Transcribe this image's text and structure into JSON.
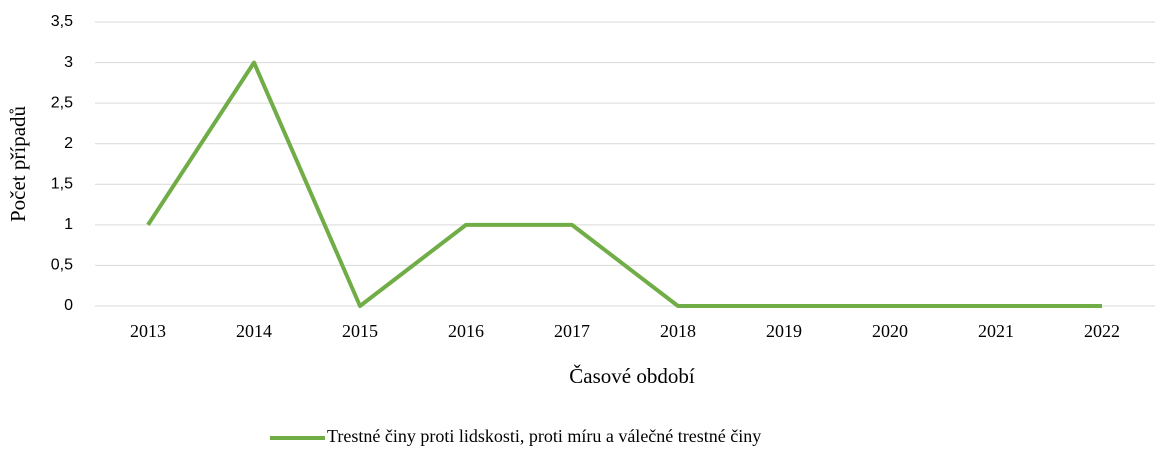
{
  "chart_data": {
    "type": "line",
    "x_label": "Časové období",
    "y_label": "Počet případů",
    "categories": [
      "2013",
      "2014",
      "2015",
      "2016",
      "2017",
      "2018",
      "2019",
      "2020",
      "2021",
      "2022"
    ],
    "series": [
      {
        "name": "Trestné činy proti lidskosti, proti míru a válečné trestné činy",
        "color": "#70ad47",
        "values": [
          1,
          3,
          0,
          1,
          1,
          0,
          0,
          0,
          0,
          0
        ]
      }
    ],
    "ylim": [
      0,
      3.5
    ],
    "yticks": [
      0,
      {
        "value": 0.5,
        "label": "0,5"
      },
      1,
      {
        "value": 1.5,
        "label": "1,5"
      },
      2,
      {
        "value": 2.5,
        "label": "2,5"
      },
      3,
      {
        "value": 3.5,
        "label": "3,5"
      }
    ],
    "grid": true
  }
}
